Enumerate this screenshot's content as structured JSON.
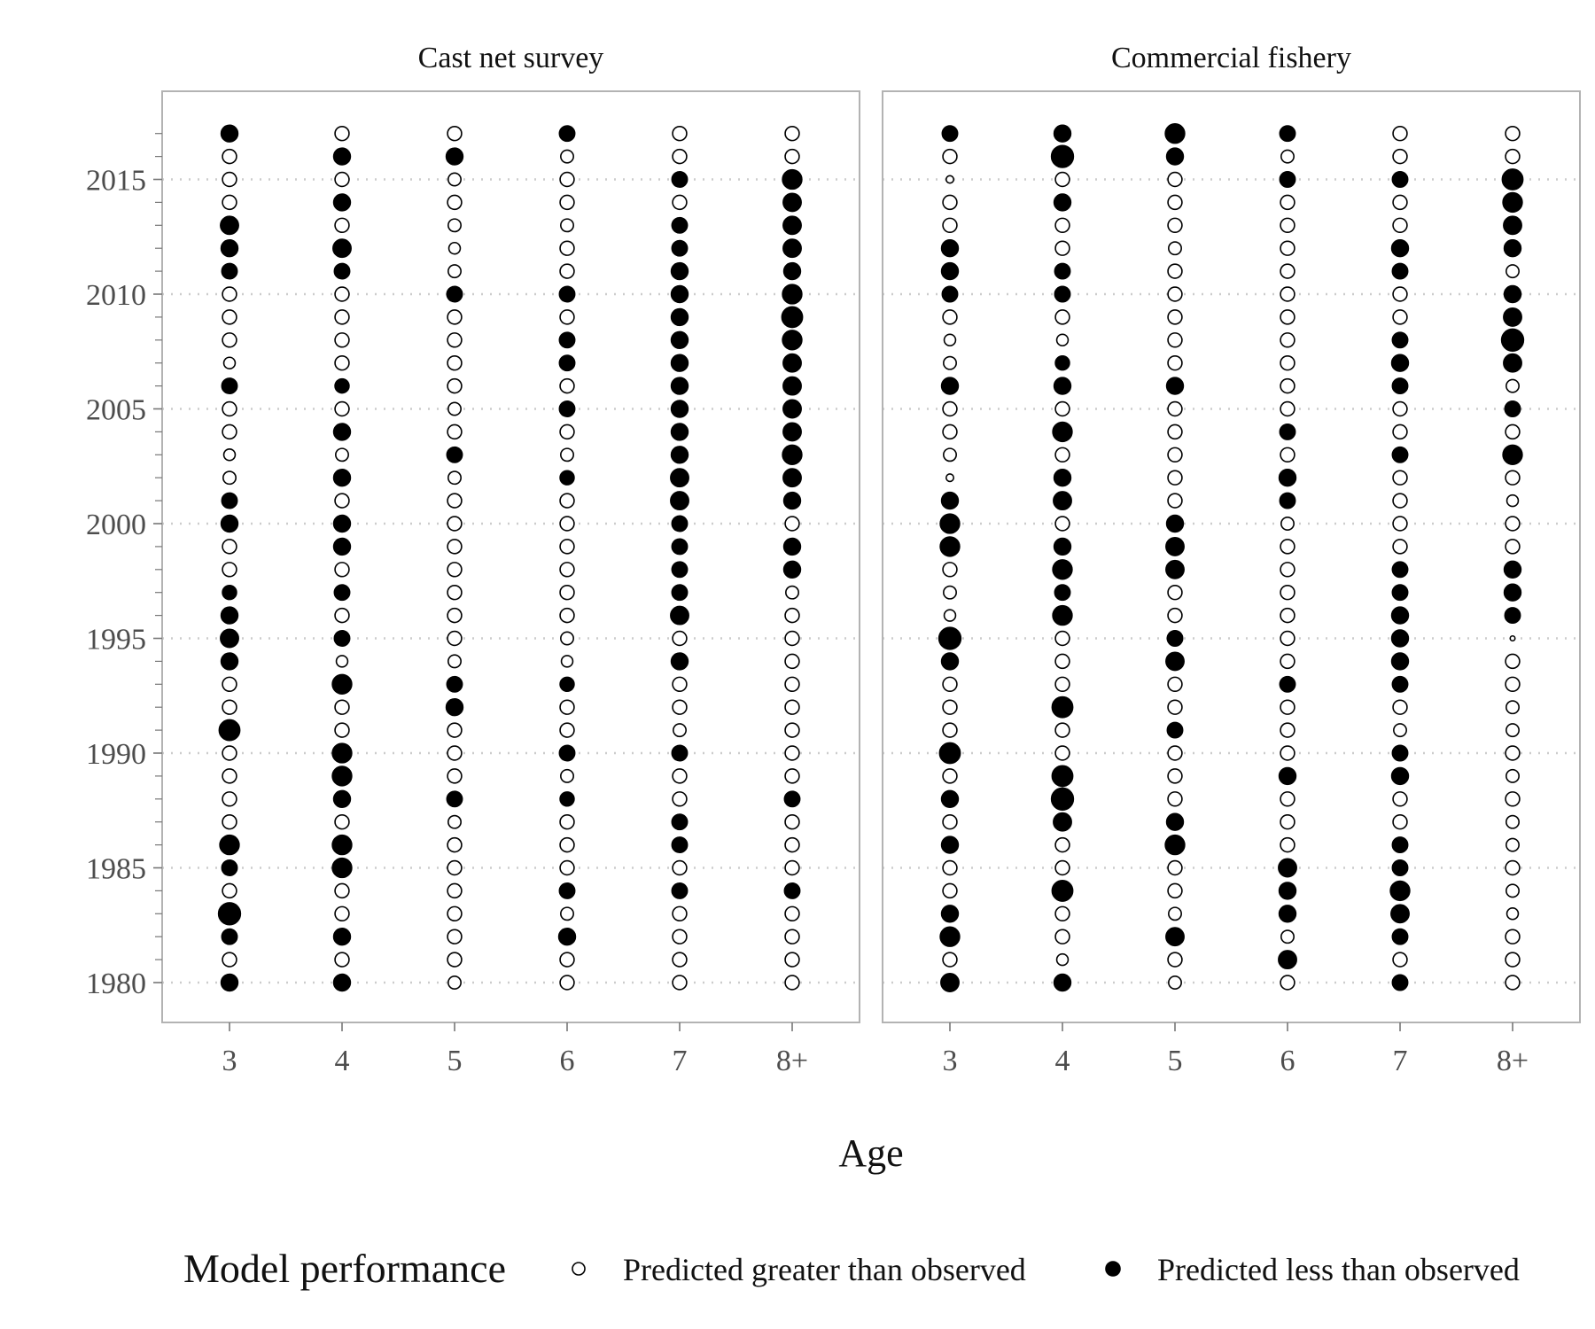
{
  "chart_data": {
    "type": "scatter",
    "subtype": "bubble",
    "xlabel": "Age",
    "ylabel": "",
    "x_categories": [
      "3",
      "4",
      "5",
      "6",
      "7",
      "8+"
    ],
    "y_range": [
      1980,
      2017
    ],
    "y_ticks": [
      1980,
      1985,
      1990,
      1995,
      2000,
      2005,
      2010,
      2015
    ],
    "gridlines": "dotted horizontal at major y ticks",
    "legend": {
      "title": "Model performance",
      "placement": "bottom",
      "entries": [
        {
          "label": "Predicted greater than observed",
          "fill": "open"
        },
        {
          "label": "Predicted less than observed",
          "fill": "filled"
        }
      ]
    },
    "colors": {
      "point": "#000000",
      "panel_border": "#b3b3b3",
      "grid": "#cccccc",
      "tick_text": "#4d4d4d"
    },
    "encoding": "rows list years 2017 down to 1980; each value is a signed residual: positive = open circle (predicted greater than observed), negative = filled circle (predicted less than observed); magnitude = circle size",
    "panels": [
      {
        "title": "Cast net survey",
        "residuals": {
          "3": [
            -1.0,
            0.8,
            0.8,
            0.8,
            -1.1,
            -1.0,
            -0.9,
            0.8,
            0.8,
            0.8,
            0.6,
            -0.9,
            0.8,
            0.8,
            0.6,
            0.7,
            -0.9,
            -1.0,
            0.8,
            0.8,
            -0.8,
            -1.0,
            -1.1,
            -1.0,
            0.8,
            0.8,
            -1.3,
            0.8,
            0.8,
            0.8,
            0.8,
            -1.2,
            -0.9,
            0.8,
            -1.4,
            -0.9,
            0.8,
            -1.0
          ],
          "4": [
            0.8,
            -1.0,
            0.8,
            -1.0,
            0.8,
            -1.1,
            -0.9,
            0.8,
            0.8,
            0.8,
            0.8,
            -0.8,
            0.8,
            -1.0,
            0.7,
            -1.0,
            0.8,
            -1.0,
            -1.0,
            0.8,
            -0.9,
            0.8,
            -0.9,
            0.6,
            -1.2,
            0.8,
            0.8,
            -1.2,
            -1.2,
            -1.0,
            0.8,
            -1.2,
            -1.2,
            0.8,
            0.8,
            -1.0,
            0.8,
            -1.0
          ],
          "5": [
            0.8,
            -1.0,
            0.7,
            0.8,
            0.7,
            0.6,
            0.7,
            -0.9,
            0.8,
            0.8,
            0.8,
            0.8,
            0.7,
            0.8,
            -0.9,
            0.7,
            0.8,
            0.8,
            0.8,
            0.8,
            0.8,
            0.8,
            0.8,
            0.7,
            -0.9,
            -1.0,
            0.8,
            0.8,
            0.8,
            -0.9,
            0.7,
            0.8,
            0.8,
            0.8,
            0.8,
            0.8,
            0.8,
            0.7
          ],
          "6": [
            -0.9,
            0.7,
            0.8,
            0.8,
            0.7,
            0.8,
            0.8,
            -0.9,
            0.8,
            -0.9,
            -0.9,
            0.8,
            -0.9,
            0.8,
            0.7,
            -0.8,
            0.8,
            0.8,
            0.8,
            0.8,
            0.8,
            0.8,
            0.7,
            0.6,
            -0.8,
            0.8,
            0.8,
            -0.9,
            0.7,
            -0.8,
            0.8,
            0.8,
            0.8,
            -0.9,
            0.7,
            -1.0,
            0.8,
            0.8
          ],
          "7": [
            0.8,
            0.8,
            -0.9,
            0.8,
            -0.9,
            -0.9,
            -1.0,
            -1.0,
            -1.0,
            -1.0,
            -1.0,
            -1.0,
            -1.0,
            -1.0,
            -1.0,
            -1.1,
            -1.1,
            -0.9,
            -0.9,
            -0.9,
            -0.9,
            -1.1,
            0.8,
            -1.0,
            0.8,
            0.8,
            0.7,
            -0.9,
            0.8,
            0.8,
            -0.9,
            -0.9,
            0.8,
            -0.9,
            0.8,
            0.8,
            0.8,
            0.8
          ],
          "8+": [
            0.8,
            0.8,
            -1.2,
            -1.1,
            -1.1,
            -1.1,
            -1.0,
            -1.2,
            -1.3,
            -1.2,
            -1.1,
            -1.1,
            -1.1,
            -1.1,
            -1.2,
            -1.1,
            -1.0,
            0.8,
            -1.0,
            -1.0,
            0.7,
            0.8,
            0.8,
            0.8,
            0.8,
            0.8,
            0.8,
            0.8,
            0.8,
            -0.9,
            0.8,
            0.8,
            0.8,
            -0.9,
            0.8,
            0.8,
            0.8,
            0.8
          ]
        }
      },
      {
        "title": "Commercial fishery",
        "residuals": {
          "3": [
            -0.9,
            0.8,
            0.3,
            0.8,
            0.8,
            -1.0,
            -1.0,
            -0.9,
            0.8,
            0.6,
            0.7,
            -1.0,
            0.8,
            0.8,
            0.7,
            0.3,
            -1.0,
            -1.2,
            -1.2,
            0.8,
            0.7,
            0.6,
            -1.4,
            -1.0,
            0.8,
            0.8,
            0.8,
            -1.3,
            0.8,
            -1.0,
            0.8,
            -1.0,
            0.8,
            0.8,
            -1.0,
            -1.2,
            0.8,
            -1.1
          ],
          "4": [
            -1.0,
            -1.4,
            0.8,
            -1.0,
            0.8,
            0.8,
            -0.9,
            -0.9,
            0.8,
            0.6,
            -0.8,
            -1.0,
            0.8,
            -1.2,
            0.8,
            -1.0,
            -1.1,
            0.8,
            -1.0,
            -1.2,
            -0.9,
            -1.2,
            0.8,
            0.8,
            0.8,
            -1.3,
            0.8,
            0.8,
            -1.3,
            -1.4,
            -1.1,
            0.8,
            0.8,
            -1.3,
            0.8,
            0.8,
            0.6,
            -1.0
          ],
          "5": [
            -1.2,
            -1.0,
            0.8,
            0.8,
            0.8,
            0.7,
            0.8,
            0.8,
            0.8,
            0.8,
            0.8,
            -1.0,
            0.8,
            0.8,
            0.8,
            0.8,
            0.8,
            -1.0,
            -1.1,
            -1.1,
            0.8,
            0.8,
            -0.9,
            -1.1,
            0.8,
            0.8,
            -0.9,
            0.8,
            0.8,
            0.8,
            -1.0,
            -1.2,
            0.8,
            0.8,
            0.7,
            -1.1,
            0.8,
            0.7
          ],
          "6": [
            -0.9,
            0.7,
            -0.9,
            0.8,
            0.8,
            0.8,
            0.8,
            0.8,
            0.8,
            0.8,
            0.8,
            0.8,
            0.8,
            -0.9,
            0.8,
            -1.0,
            -0.9,
            0.7,
            0.8,
            0.8,
            0.8,
            0.8,
            0.8,
            0.8,
            -0.9,
            0.8,
            0.8,
            0.8,
            -1.0,
            0.8,
            0.8,
            0.8,
            -1.1,
            -1.0,
            -1.0,
            0.7,
            -1.1,
            0.8
          ],
          "7": [
            0.8,
            0.8,
            -0.9,
            0.8,
            0.8,
            -1.0,
            -0.9,
            0.8,
            0.8,
            -0.9,
            -1.0,
            -0.9,
            0.8,
            0.8,
            -0.9,
            0.8,
            0.8,
            0.8,
            0.8,
            -0.9,
            -0.9,
            -1.0,
            -1.0,
            -1.0,
            -0.9,
            0.8,
            0.7,
            -0.9,
            -1.0,
            0.8,
            0.8,
            -0.9,
            -0.9,
            -1.2,
            -1.1,
            -0.9,
            0.8,
            -0.9
          ],
          "8+": [
            0.8,
            0.8,
            -1.3,
            -1.2,
            -1.1,
            -1.0,
            0.7,
            -1.0,
            -1.1,
            -1.4,
            -1.1,
            0.7,
            -0.9,
            0.8,
            -1.2,
            0.8,
            0.6,
            0.8,
            0.8,
            -1.0,
            -1.0,
            -0.9,
            0.1,
            0.8,
            0.8,
            0.7,
            0.7,
            0.8,
            0.7,
            0.8,
            0.7,
            0.7,
            0.8,
            0.7,
            0.6,
            0.8,
            0.8,
            0.8
          ]
        }
      }
    ]
  }
}
